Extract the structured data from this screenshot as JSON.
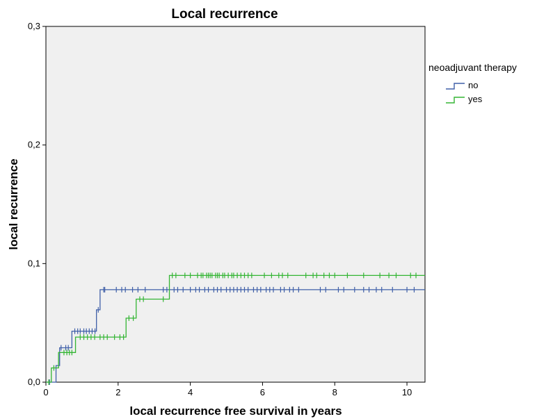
{
  "chart_data": {
    "type": "line",
    "title": "Local recurrence",
    "xlabel": "local recurrence free survival in years",
    "ylabel": "local recurrence",
    "xlim": [
      0,
      10.5
    ],
    "ylim": [
      0,
      0.3
    ],
    "xticks": [
      0,
      2,
      4,
      6,
      8,
      10
    ],
    "yticks": [
      0,
      0.1,
      0.2,
      0.3
    ],
    "xtick_labels": [
      "0",
      "2",
      "4",
      "6",
      "8",
      "10"
    ],
    "ytick_labels": [
      "0,0",
      "0,1",
      "0,2",
      "0,3"
    ],
    "grid": false,
    "legend": {
      "title": "neoadjuvant therapy",
      "position": "right"
    },
    "background": "#f0f0f0",
    "series": [
      {
        "name": "no",
        "color": "#3f5fa8",
        "steps": [
          [
            0,
            0
          ],
          [
            0.28,
            0.014
          ],
          [
            0.38,
            0.029
          ],
          [
            0.72,
            0.043
          ],
          [
            1.4,
            0.061
          ],
          [
            1.5,
            0.078
          ],
          [
            10.5,
            0.078
          ]
        ],
        "censored": [
          0.1,
          0.42,
          0.55,
          0.62,
          0.8,
          0.88,
          0.95,
          1.05,
          1.12,
          1.2,
          1.28,
          1.36,
          1.45,
          1.6,
          1.63,
          1.95,
          2.1,
          2.2,
          2.4,
          2.55,
          2.75,
          3.25,
          3.35,
          3.55,
          3.65,
          3.8,
          4.0,
          4.15,
          4.25,
          4.4,
          4.5,
          4.65,
          4.75,
          4.85,
          5.0,
          5.1,
          5.2,
          5.3,
          5.4,
          5.5,
          5.6,
          5.75,
          5.85,
          5.95,
          6.1,
          6.2,
          6.3,
          6.5,
          6.6,
          6.75,
          6.85,
          7.0,
          7.6,
          7.75,
          8.1,
          8.25,
          8.55,
          8.8,
          8.95,
          9.15,
          9.3,
          9.6,
          10.0,
          10.2
        ]
      },
      {
        "name": "yes",
        "color": "#33b533",
        "steps": [
          [
            0,
            0
          ],
          [
            0.15,
            0.012
          ],
          [
            0.35,
            0.025
          ],
          [
            0.82,
            0.038
          ],
          [
            2.22,
            0.054
          ],
          [
            2.5,
            0.07
          ],
          [
            3.42,
            0.09
          ],
          [
            10.5,
            0.09
          ]
        ],
        "censored": [
          0.08,
          0.22,
          0.5,
          0.58,
          0.65,
          0.72,
          0.95,
          1.05,
          1.15,
          1.25,
          1.35,
          1.5,
          1.6,
          1.7,
          1.9,
          2.05,
          2.15,
          2.3,
          2.42,
          2.6,
          2.7,
          3.25,
          3.5,
          3.6,
          3.85,
          4.0,
          4.2,
          4.3,
          4.35,
          4.45,
          4.5,
          4.55,
          4.6,
          4.7,
          4.75,
          4.8,
          4.9,
          4.95,
          5.05,
          5.15,
          5.2,
          5.3,
          5.4,
          5.5,
          5.6,
          5.7,
          6.05,
          6.25,
          6.45,
          6.55,
          6.7,
          7.2,
          7.4,
          7.5,
          7.7,
          7.85,
          8.0,
          8.35,
          8.8,
          9.25,
          9.5,
          9.7,
          10.1,
          10.25
        ]
      }
    ]
  }
}
